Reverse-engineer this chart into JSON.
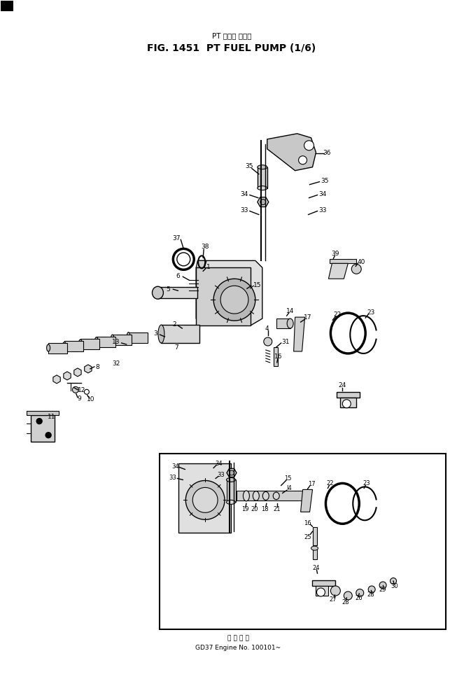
{
  "title_jp": "PT フェル ポンプ",
  "title_en": "FIG. 1451  PT FUEL PUMP (1/6)",
  "footer_jp": "部 品 番 号",
  "footer_en": "GD37 Engine No. 100101~",
  "bg_color": "#ffffff",
  "line_color": "#000000",
  "fig_width": 6.63,
  "fig_height": 9.8
}
